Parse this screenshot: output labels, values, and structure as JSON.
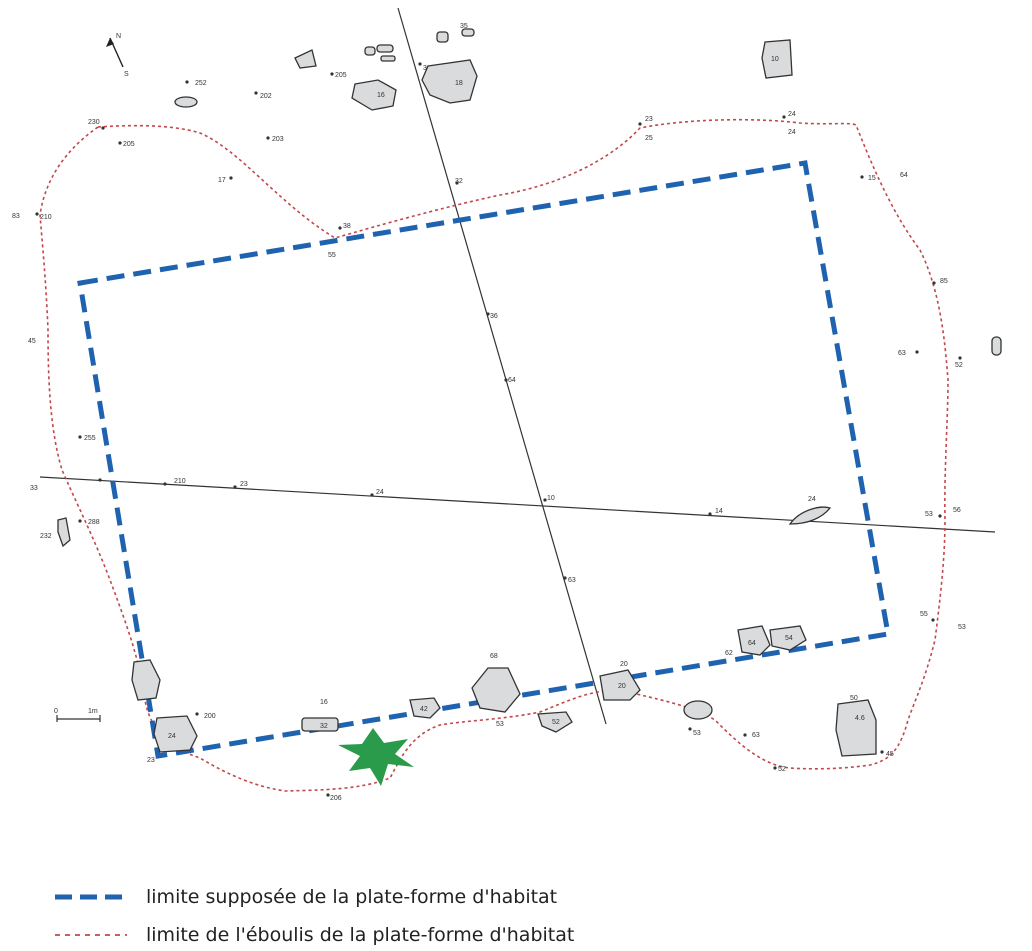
{
  "legend": {
    "items": [
      {
        "label": "limite supposée de la plate-forme d'habitat",
        "color": "#1f63b0",
        "style": "dashed-bold"
      },
      {
        "label": "limite de l'éboulis de la plate-forme d'habitat",
        "color": "#c2474a",
        "style": "dashed-thin"
      }
    ]
  },
  "scale_bar": {
    "start": "0",
    "end": "1m"
  },
  "north_arrow": {
    "n": "N",
    "s": "S"
  },
  "colors": {
    "platform_limit": "#1f63b0",
    "scree_limit": "#c2474a",
    "marker": "#2a9b4a",
    "stone_fill": "#d9dbdd"
  }
}
